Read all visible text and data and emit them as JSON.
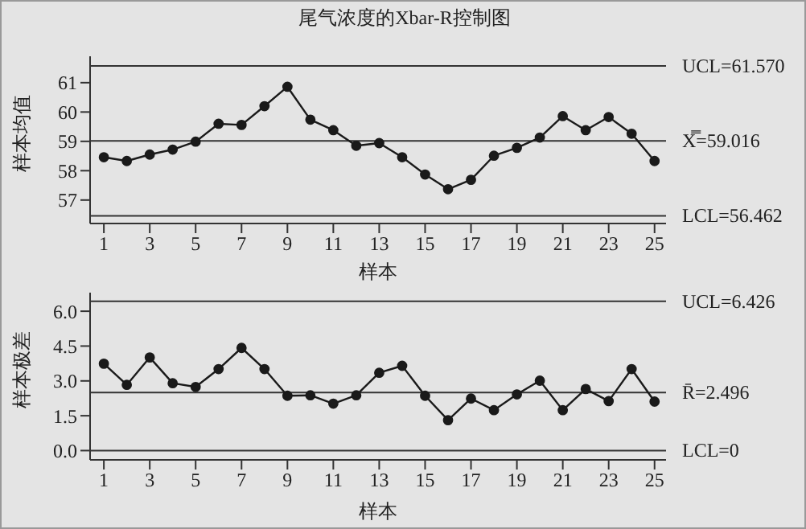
{
  "chart_data": [
    {
      "type": "line",
      "title": "尾气浓度的Xbar-R控制图",
      "xlabel": "样本",
      "ylabel": "样本均值",
      "x": [
        1,
        2,
        3,
        4,
        5,
        6,
        7,
        8,
        9,
        10,
        11,
        12,
        13,
        14,
        15,
        16,
        17,
        18,
        19,
        20,
        21,
        22,
        23,
        24,
        25
      ],
      "series": [
        {
          "color": "#1a1a1a",
          "values": [
            58.46,
            58.33,
            58.55,
            58.72,
            58.99,
            59.6,
            59.56,
            60.2,
            60.86,
            59.74,
            59.38,
            58.85,
            58.94,
            58.46,
            57.87,
            57.37,
            57.69,
            58.51,
            58.78,
            59.13,
            59.86,
            59.38,
            59.83,
            59.26,
            58.33
          ]
        }
      ],
      "xlim": [
        0.4,
        25.5
      ],
      "xticks": [
        1,
        3,
        5,
        7,
        9,
        11,
        13,
        15,
        17,
        19,
        21,
        23,
        25
      ],
      "ylim": [
        56.2,
        61.9
      ],
      "yticks": [
        57,
        58,
        59,
        60,
        61
      ],
      "ref_lines": [
        {
          "axis": "y",
          "value": 61.57,
          "label": "UCL=61.570",
          "color": "#333333"
        },
        {
          "axis": "y",
          "value": 59.016,
          "label": "X̿=59.016",
          "color": "#333333"
        },
        {
          "axis": "y",
          "value": 56.462,
          "label": "LCL=56.462",
          "color": "#333333"
        }
      ],
      "grid": false,
      "legend": false,
      "marker": "circle",
      "line_style": "solid"
    },
    {
      "type": "line",
      "xlabel": "样本",
      "ylabel": "样本极差",
      "x": [
        1,
        2,
        3,
        4,
        5,
        6,
        7,
        8,
        9,
        10,
        11,
        12,
        13,
        14,
        15,
        16,
        17,
        18,
        19,
        20,
        21,
        22,
        23,
        24,
        25
      ],
      "series": [
        {
          "color": "#1a1a1a",
          "values": [
            3.74,
            2.83,
            4.01,
            2.9,
            2.74,
            3.51,
            4.42,
            3.51,
            2.36,
            2.38,
            2.02,
            2.38,
            3.35,
            3.65,
            2.36,
            1.31,
            2.24,
            1.74,
            2.42,
            3.01,
            1.74,
            2.65,
            2.13,
            3.51,
            2.11
          ]
        }
      ],
      "xlim": [
        0.4,
        25.5
      ],
      "xticks": [
        1,
        3,
        5,
        7,
        9,
        11,
        13,
        15,
        17,
        19,
        21,
        23,
        25
      ],
      "ylim": [
        -0.4,
        6.8
      ],
      "yticks": [
        {
          "value": 0,
          "label": "0.0"
        },
        {
          "value": 1.5,
          "label": "1.5"
        },
        {
          "value": 3,
          "label": "3.0"
        },
        {
          "value": 4.5,
          "label": "4.5"
        },
        {
          "value": 6,
          "label": "6.0"
        }
      ],
      "ref_lines": [
        {
          "axis": "y",
          "value": 6.426,
          "label": "UCL=6.426",
          "color": "#333333"
        },
        {
          "axis": "y",
          "value": 2.496,
          "label": "R̄=2.496",
          "color": "#333333"
        },
        {
          "axis": "y",
          "value": 0,
          "label": "LCL=0",
          "color": "#333333"
        }
      ],
      "grid": false,
      "legend": false,
      "marker": "circle",
      "line_style": "solid"
    }
  ]
}
